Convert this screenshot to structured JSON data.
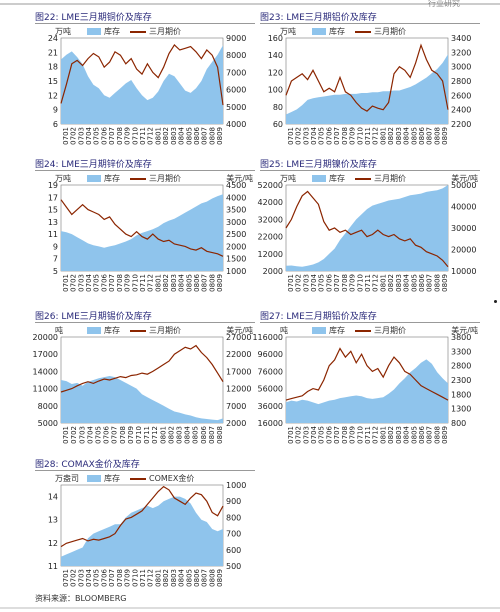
{
  "header": {
    "right_text": "行业研究"
  },
  "source": "资料来源：BLOOMBERG",
  "colors": {
    "inventory": "#8fc4ec",
    "price": "#8b2500",
    "title": "#2a2a7a"
  },
  "chart_data": [
    {
      "id": "c22",
      "type": "area+line",
      "title": "图22:  LME三月期铜价及库存",
      "left_unit": "万吨",
      "right_unit": "",
      "legend": [
        "库存",
        "三月期价"
      ],
      "x_ticks": [
        "0701",
        "0702",
        "0703",
        "0704",
        "0705",
        "0706",
        "0707",
        "0708",
        "0709",
        "0710",
        "0711",
        "0712",
        "0801",
        "0802",
        "0803",
        "0804",
        "0805",
        "0806",
        "0807",
        "0808",
        "0809"
      ],
      "left_ticks": [
        6,
        9,
        12,
        15,
        18,
        21,
        24
      ],
      "left_range": [
        6,
        24
      ],
      "right_ticks": [
        4000,
        5000,
        6000,
        7000,
        8000,
        9000
      ],
      "right_range": [
        4000,
        9000
      ],
      "inventory": [
        19.5,
        20.5,
        21.2,
        20,
        18.5,
        16,
        14.2,
        13.5,
        12,
        11.5,
        12.5,
        13.5,
        14.5,
        15.2,
        13.5,
        12,
        11,
        11.5,
        12.8,
        15,
        16.5,
        16,
        14.5,
        13,
        12.5,
        13.5,
        15,
        17.5,
        19,
        20.5,
        22.5
      ],
      "price": [
        5200,
        6300,
        7500,
        7700,
        7400,
        7800,
        8100,
        7900,
        7300,
        7600,
        8200,
        8000,
        7500,
        7800,
        7200,
        6900,
        7500,
        7000,
        6700,
        7300,
        8100,
        8600,
        8300,
        8400,
        8500,
        8200,
        7800,
        8300,
        8000,
        7300,
        5100
      ]
    },
    {
      "id": "c23",
      "type": "area+line",
      "title": "图23:  LME三月期铝价及库存",
      "left_unit": "万吨",
      "right_unit": "",
      "legend": [
        "库存",
        "三月期价"
      ],
      "x_ticks": [
        "0701",
        "0702",
        "0703",
        "0704",
        "0705",
        "0706",
        "0707",
        "0708",
        "0709",
        "0710",
        "0711",
        "0712",
        "0801",
        "0802",
        "0803",
        "0804",
        "0805",
        "0806",
        "0807",
        "0808",
        "0809"
      ],
      "left_ticks": [
        60,
        80,
        100,
        120,
        140,
        160
      ],
      "left_range": [
        60,
        160
      ],
      "right_ticks": [
        2200,
        2400,
        2600,
        2800,
        3000,
        3200,
        3400
      ],
      "right_range": [
        2200,
        3400
      ],
      "inventory": [
        71,
        74,
        77,
        82,
        88,
        90,
        91,
        92,
        93,
        94,
        94,
        95,
        95,
        95,
        96,
        96,
        97,
        97,
        98,
        98,
        99,
        99,
        101,
        103,
        106,
        110,
        114,
        119,
        124,
        131,
        141
      ],
      "price": [
        2600,
        2800,
        2850,
        2900,
        2820,
        2950,
        2800,
        2650,
        2700,
        2650,
        2850,
        2650,
        2600,
        2500,
        2420,
        2380,
        2450,
        2420,
        2400,
        2500,
        2900,
        3000,
        2950,
        2850,
        3050,
        3300,
        3100,
        2950,
        2900,
        2800,
        2400
      ]
    },
    {
      "id": "c24",
      "type": "area+line",
      "title": "图24:  LME三月期锌价及库存",
      "left_unit": "万吨",
      "right_unit": "美元/吨",
      "legend": [
        "库存",
        "三月期价"
      ],
      "x_ticks": [
        "0701",
        "0702",
        "0703",
        "0704",
        "0705",
        "0706",
        "0707",
        "0708",
        "0709",
        "0710",
        "0711",
        "0712",
        "0801",
        "0802",
        "0803",
        "0804",
        "0805",
        "0806",
        "0807",
        "0808",
        "0809"
      ],
      "left_ticks": [
        5,
        7,
        9,
        11,
        13,
        15,
        17,
        19
      ],
      "left_range": [
        5,
        19
      ],
      "right_ticks": [
        1000,
        1500,
        2000,
        2500,
        3000,
        3500,
        4000,
        4500
      ],
      "right_range": [
        1000,
        4500
      ],
      "inventory": [
        11.5,
        11.3,
        11,
        10.5,
        10,
        9.5,
        9.2,
        9,
        8.8,
        9,
        9.2,
        9.5,
        9.8,
        10.2,
        10.8,
        11.2,
        11.5,
        11.8,
        12.2,
        12.8,
        13.2,
        13.5,
        14,
        14.5,
        15,
        15.5,
        16,
        16.3,
        16.8,
        17.2,
        17.5
      ],
      "price": [
        3900,
        3600,
        3300,
        3500,
        3700,
        3500,
        3400,
        3300,
        3100,
        3200,
        2900,
        2700,
        2500,
        2400,
        2600,
        2400,
        2300,
        2500,
        2300,
        2200,
        2250,
        2100,
        2050,
        2000,
        1900,
        1850,
        1950,
        1800,
        1750,
        1700,
        1600
      ]
    },
    {
      "id": "c25",
      "type": "area+line",
      "title": "图25:  LME三月期镍价及库存",
      "left_unit": "万吨",
      "right_unit": "美元/吨",
      "legend": [
        "库存",
        "三月期价"
      ],
      "x_ticks": [
        "0701",
        "0702",
        "0703",
        "0704",
        "0705",
        "0706",
        "0707",
        "0708",
        "0709",
        "0710",
        "0711",
        "0712",
        "0801",
        "0802",
        "0803",
        "0804",
        "0805",
        "0806",
        "0807",
        "0808",
        "0809"
      ],
      "left_ticks": [
        2000,
        12000,
        22000,
        32000,
        42000,
        52000
      ],
      "left_range": [
        2000,
        52000
      ],
      "right_ticks": [
        10000,
        20000,
        30000,
        40000,
        50000
      ],
      "right_range": [
        10000,
        50000
      ],
      "inventory": [
        5000,
        5200,
        4800,
        4500,
        5000,
        5800,
        7000,
        9000,
        12000,
        15000,
        20000,
        24000,
        28000,
        32000,
        35000,
        38000,
        40000,
        41000,
        42000,
        43000,
        43500,
        44000,
        45000,
        46000,
        46500,
        47000,
        48000,
        48500,
        49000,
        50000,
        52000
      ],
      "price": [
        30000,
        34000,
        40000,
        45000,
        47000,
        44000,
        41000,
        33000,
        29000,
        30000,
        28000,
        29000,
        27000,
        28000,
        29000,
        26000,
        27000,
        29000,
        27000,
        26000,
        27000,
        25000,
        24000,
        25000,
        22000,
        21000,
        19000,
        18000,
        17000,
        15000,
        12000
      ]
    },
    {
      "id": "c26",
      "type": "area+line",
      "title": "图26:  LME三月期锡价及库存",
      "left_unit": "吨",
      "right_unit": "美元/吨",
      "legend": [
        "库存",
        "三月期价"
      ],
      "x_ticks": [
        "0701",
        "0702",
        "0703",
        "0704",
        "0705",
        "0706",
        "0707",
        "0708",
        "0709",
        "0710",
        "0711",
        "0712",
        "0801",
        "0802",
        "0803",
        "0804",
        "0805",
        "0806",
        "0807",
        "0808"
      ],
      "left_ticks": [
        5000,
        8000,
        11000,
        14000,
        17000,
        20000
      ],
      "left_range": [
        5000,
        20000
      ],
      "right_ticks": [
        2000,
        7000,
        12000,
        17000,
        22000,
        27000
      ],
      "right_range": [
        2000,
        27000
      ],
      "inventory": [
        12500,
        12300,
        11800,
        12000,
        11500,
        12200,
        12500,
        12800,
        13000,
        13200,
        13000,
        12500,
        12000,
        11500,
        11000,
        10000,
        9500,
        9000,
        8500,
        8000,
        7500,
        7000,
        6800,
        6500,
        6300,
        6000,
        5800,
        5700,
        5600,
        5500,
        5800
      ],
      "price": [
        11000,
        11500,
        12000,
        12800,
        13500,
        14000,
        13500,
        14200,
        14800,
        14500,
        15000,
        15500,
        15200,
        15800,
        16000,
        16500,
        16200,
        17000,
        18000,
        19000,
        20000,
        22000,
        23000,
        24000,
        23500,
        24500,
        22500,
        21000,
        19000,
        16500,
        14000
      ]
    },
    {
      "id": "c27",
      "type": "area+line",
      "title": "图27:  LME三月期铅价及库存",
      "left_unit": "吨",
      "right_unit": "美元/吨",
      "legend": [
        "库存",
        "三月期价"
      ],
      "x_ticks": [
        "0701",
        "0702",
        "0703",
        "0704",
        "0705",
        "0706",
        "0707",
        "0708",
        "0709",
        "0710",
        "0711",
        "0712",
        "0801",
        "0802",
        "0803",
        "0804",
        "0805",
        "0806",
        "0807",
        "0808",
        "0809"
      ],
      "left_ticks": [
        16000,
        36000,
        56000,
        76000,
        96000,
        116000
      ],
      "left_range": [
        16000,
        116000
      ],
      "right_ticks": [
        800,
        1300,
        1800,
        2300,
        2800,
        3300,
        3800
      ],
      "right_range": [
        800,
        3800
      ],
      "inventory": [
        40000,
        42000,
        41000,
        43000,
        42000,
        40000,
        38000,
        40000,
        42000,
        43000,
        45000,
        46000,
        47000,
        48000,
        47000,
        45000,
        44000,
        45000,
        46000,
        50000,
        55000,
        62000,
        68000,
        75000,
        80000,
        86000,
        90000,
        85000,
        75000,
        68000,
        62000
      ],
      "price": [
        1600,
        1650,
        1700,
        1750,
        1900,
        2000,
        1950,
        2300,
        2800,
        3000,
        3400,
        3100,
        3300,
        2900,
        3200,
        2800,
        2600,
        2700,
        2400,
        2800,
        3100,
        2900,
        2600,
        2500,
        2300,
        2100,
        2000,
        1900,
        1800,
        1700,
        1600
      ]
    },
    {
      "id": "c28",
      "type": "area+line",
      "title": "图28:  COMAX金价及库存",
      "left_unit": "万盎司",
      "right_unit": "",
      "legend": [
        "库存",
        "COMEX金价"
      ],
      "x_ticks": [
        "0701",
        "0702",
        "0703",
        "0704",
        "0705",
        "0706",
        "0707",
        "0708",
        "0709",
        "0710",
        "0711",
        "0712",
        "0801",
        "0802",
        "0803",
        "0804",
        "0805",
        "0806",
        "0807",
        "0808",
        "0809"
      ],
      "left_ticks": [
        11,
        12,
        13,
        14
      ],
      "left_range": [
        11,
        14.5
      ],
      "right_ticks": [
        500,
        600,
        700,
        800,
        900,
        1000
      ],
      "right_range": [
        500,
        1000
      ],
      "inventory": [
        11.4,
        11.5,
        11.6,
        11.7,
        11.8,
        12.2,
        12.4,
        12.5,
        12.6,
        12.7,
        12.8,
        12.8,
        13.1,
        13.3,
        13.4,
        13.5,
        13.6,
        13.5,
        13.6,
        13.8,
        13.9,
        14.0,
        14.0,
        13.9,
        13.7,
        13.3,
        13.0,
        12.9,
        12.6,
        12.5,
        12.6
      ],
      "price": [
        620,
        640,
        650,
        660,
        670,
        655,
        665,
        660,
        670,
        680,
        700,
        750,
        790,
        800,
        820,
        840,
        880,
        920,
        960,
        990,
        970,
        920,
        900,
        880,
        920,
        950,
        940,
        900,
        830,
        810,
        870
      ]
    }
  ]
}
